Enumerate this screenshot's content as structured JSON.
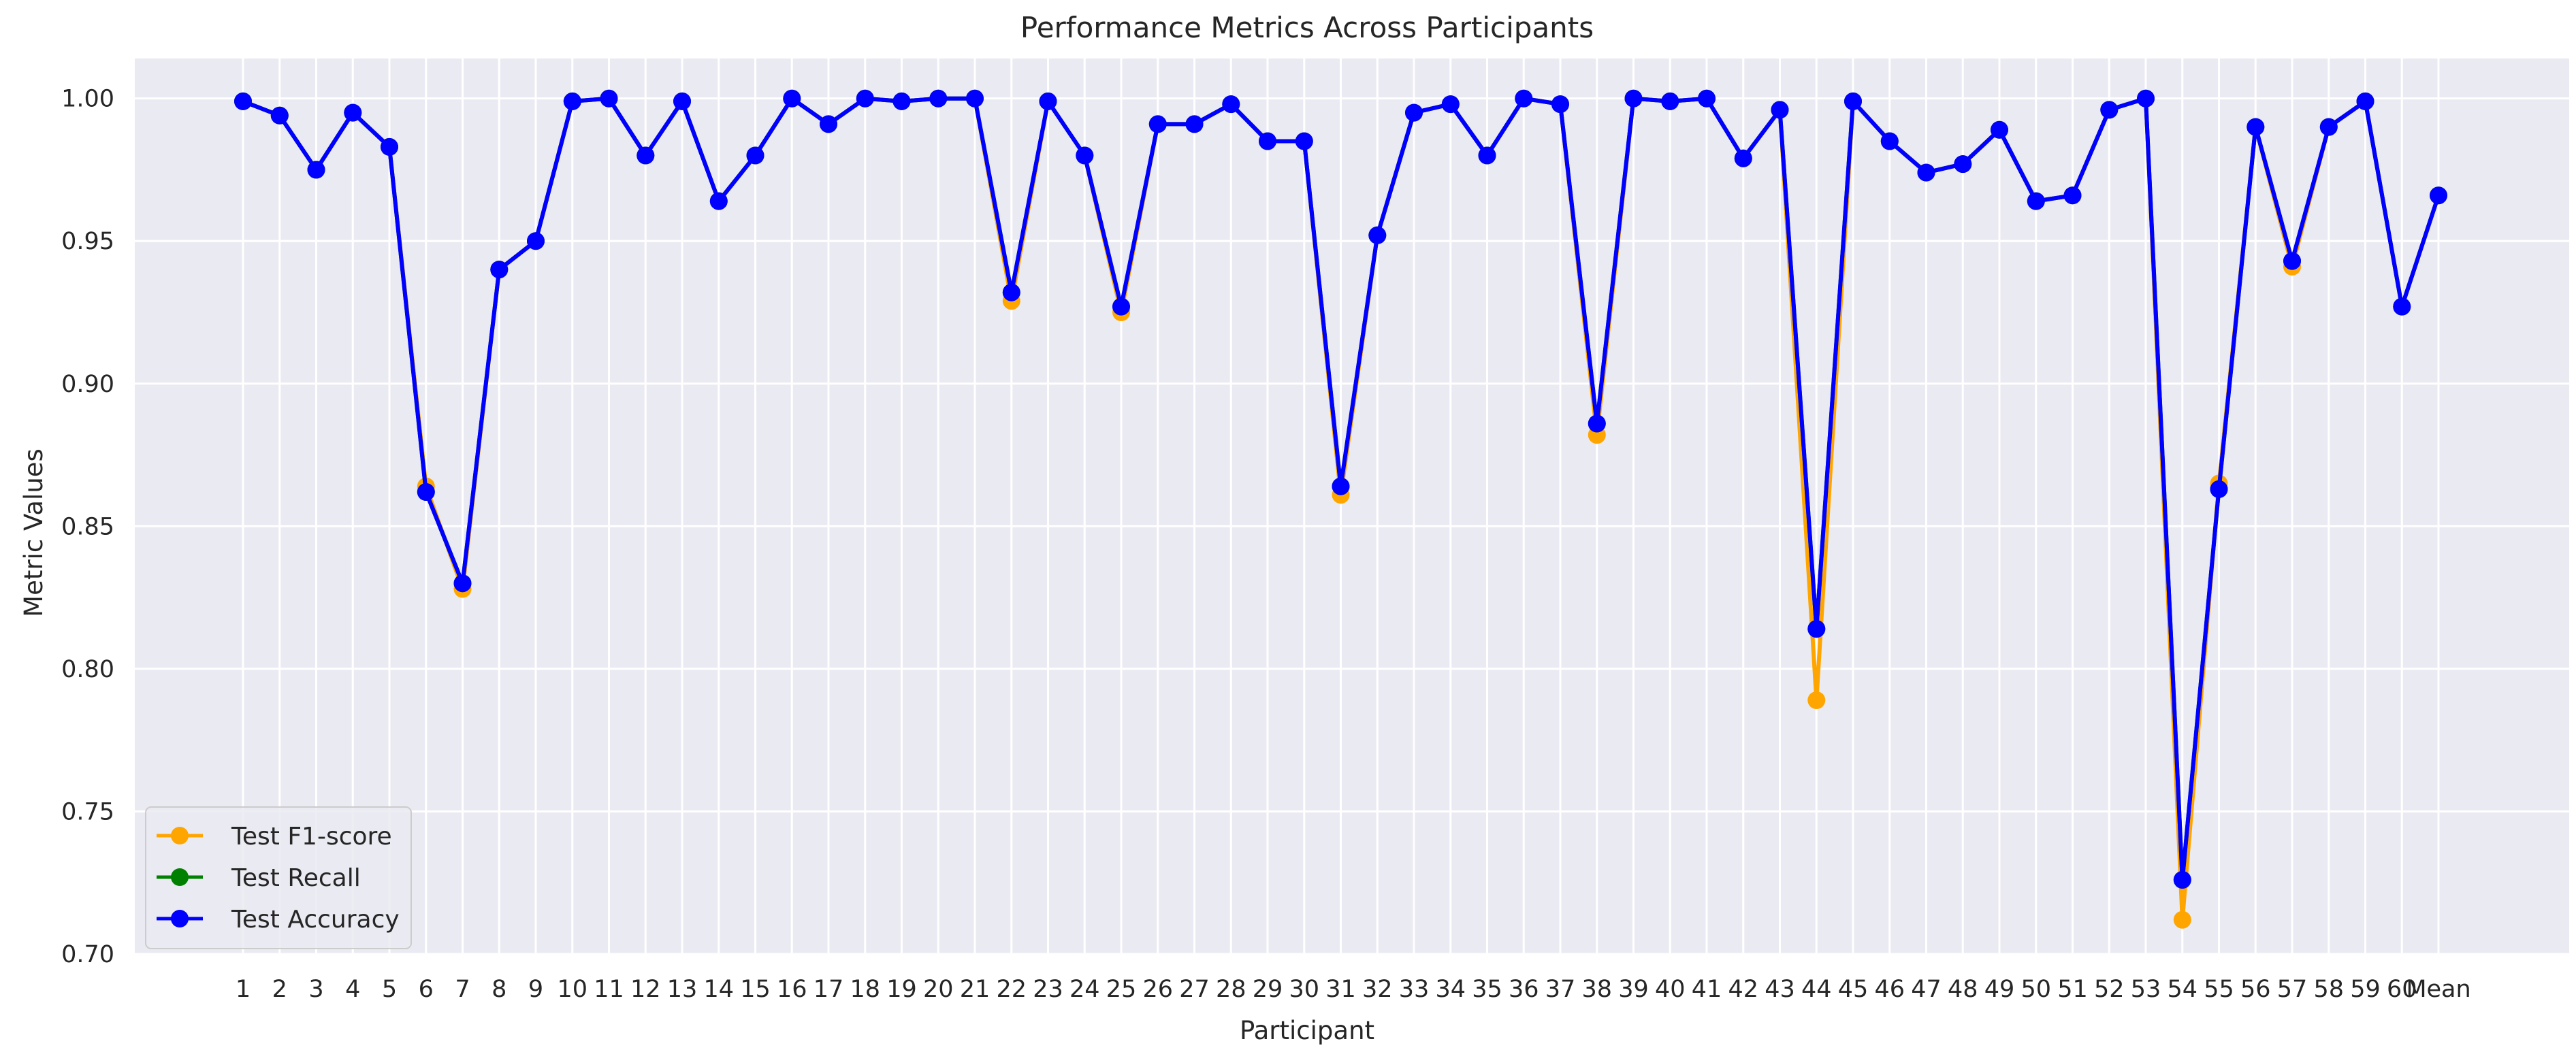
{
  "chart_data": {
    "type": "line",
    "title": "Performance Metrics Across Participants",
    "xlabel": "Participant",
    "ylabel": "Metric Values",
    "categories": [
      "1",
      "2",
      "3",
      "4",
      "5",
      "6",
      "7",
      "8",
      "9",
      "10",
      "11",
      "12",
      "13",
      "14",
      "15",
      "16",
      "17",
      "18",
      "19",
      "20",
      "21",
      "22",
      "23",
      "24",
      "25",
      "26",
      "27",
      "28",
      "29",
      "30",
      "31",
      "32",
      "33",
      "34",
      "35",
      "36",
      "37",
      "38",
      "39",
      "40",
      "41",
      "42",
      "43",
      "44",
      "45",
      "46",
      "47",
      "48",
      "49",
      "50",
      "51",
      "52",
      "53",
      "54",
      "55",
      "56",
      "57",
      "58",
      "59",
      "60",
      "Mean"
    ],
    "ylim": [
      0.7,
      1.014
    ],
    "yticks": [
      "0.70",
      "0.75",
      "0.80",
      "0.85",
      "0.90",
      "0.95",
      "1.00"
    ],
    "grid": true,
    "legend_position": "bottom-left",
    "series": [
      {
        "name": "Test F1-score",
        "color": "#FFA500",
        "values": [
          0.999,
          0.994,
          0.975,
          0.995,
          0.983,
          0.864,
          0.828,
          0.94,
          0.95,
          0.999,
          1.0,
          0.98,
          0.999,
          0.964,
          0.98,
          1.0,
          0.991,
          1.0,
          0.999,
          1.0,
          1.0,
          0.929,
          0.999,
          0.98,
          0.925,
          0.991,
          0.991,
          0.998,
          0.985,
          0.985,
          0.861,
          0.952,
          0.995,
          0.998,
          0.98,
          1.0,
          0.998,
          0.882,
          1.0,
          0.999,
          1.0,
          0.979,
          0.996,
          0.789,
          0.999,
          0.985,
          0.974,
          0.977,
          0.989,
          0.964,
          0.966,
          0.996,
          1.0,
          0.712,
          0.865,
          0.99,
          0.941,
          0.99,
          0.999,
          0.927,
          0.966
        ]
      },
      {
        "name": "Test Recall",
        "color": "#008000",
        "values": [
          0.999,
          0.994,
          0.975,
          0.995,
          0.983,
          0.862,
          0.83,
          0.94,
          0.95,
          0.999,
          1.0,
          0.98,
          0.999,
          0.964,
          0.98,
          1.0,
          0.991,
          1.0,
          0.999,
          1.0,
          1.0,
          0.932,
          0.999,
          0.98,
          0.927,
          0.991,
          0.991,
          0.998,
          0.985,
          0.985,
          0.864,
          0.952,
          0.995,
          0.998,
          0.98,
          1.0,
          0.998,
          0.886,
          1.0,
          0.999,
          1.0,
          0.979,
          0.996,
          0.814,
          0.999,
          0.985,
          0.974,
          0.977,
          0.989,
          0.964,
          0.966,
          0.996,
          1.0,
          0.726,
          0.863,
          0.99,
          0.943,
          0.99,
          0.999,
          0.927,
          0.966
        ]
      },
      {
        "name": "Test Accuracy",
        "color": "#0000FF",
        "values": [
          0.999,
          0.994,
          0.975,
          0.995,
          0.983,
          0.862,
          0.83,
          0.94,
          0.95,
          0.999,
          1.0,
          0.98,
          0.999,
          0.964,
          0.98,
          1.0,
          0.991,
          1.0,
          0.999,
          1.0,
          1.0,
          0.932,
          0.999,
          0.98,
          0.927,
          0.991,
          0.991,
          0.998,
          0.985,
          0.985,
          0.864,
          0.952,
          0.995,
          0.998,
          0.98,
          1.0,
          0.998,
          0.886,
          1.0,
          0.999,
          1.0,
          0.979,
          0.996,
          0.814,
          0.999,
          0.985,
          0.974,
          0.977,
          0.989,
          0.964,
          0.966,
          0.996,
          1.0,
          0.726,
          0.863,
          0.99,
          0.943,
          0.99,
          0.999,
          0.927,
          0.966
        ]
      }
    ],
    "colors": {
      "plot_background": "#EAEAF2",
      "grid": "#FFFFFF",
      "text": "#262626"
    }
  }
}
